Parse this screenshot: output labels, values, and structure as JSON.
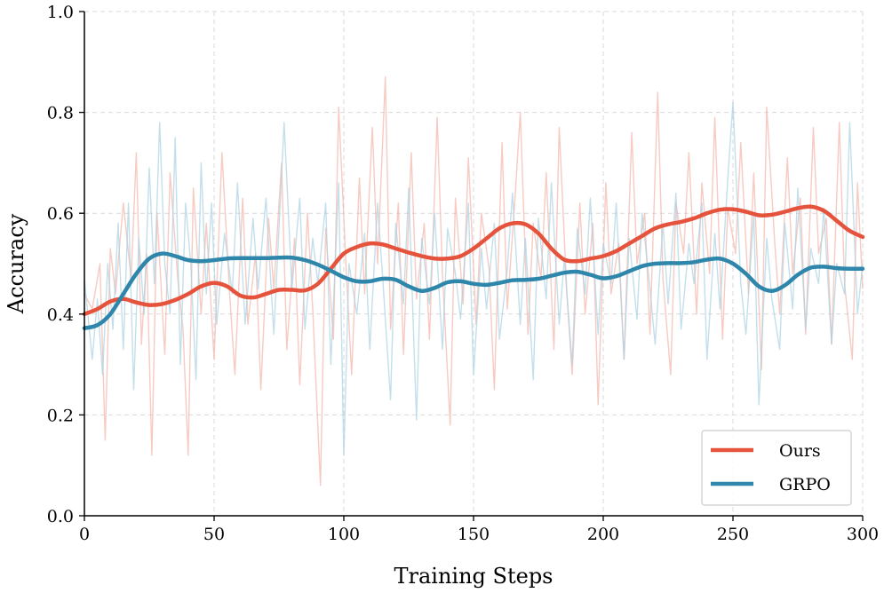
{
  "chart_data": {
    "type": "line",
    "title": "",
    "xlabel": "Training Steps",
    "ylabel": "Accuracy",
    "xlim": [
      0,
      300
    ],
    "ylim": [
      0.0,
      1.0
    ],
    "x_ticks": [
      0,
      50,
      100,
      150,
      200,
      250,
      300
    ],
    "x_tick_labels": [
      "0",
      "50",
      "100",
      "150",
      "200",
      "250",
      "300"
    ],
    "y_ticks": [
      0.0,
      0.2,
      0.4,
      0.6,
      0.8,
      1.0
    ],
    "y_tick_labels": [
      "0.0",
      "0.2",
      "0.4",
      "0.6",
      "0.8",
      "1.0"
    ],
    "grid": true,
    "legend_position": "bottom-right",
    "series": [
      {
        "name": "Ours",
        "color": "#e5533c",
        "raw_color": "#f4b3a8",
        "smoothed": {
          "x": [
            0,
            5,
            10,
            15,
            20,
            25,
            30,
            35,
            40,
            45,
            50,
            55,
            60,
            65,
            70,
            75,
            80,
            85,
            90,
            95,
            100,
            105,
            110,
            115,
            120,
            125,
            130,
            135,
            140,
            145,
            150,
            155,
            160,
            165,
            170,
            175,
            180,
            185,
            190,
            195,
            200,
            205,
            210,
            215,
            220,
            225,
            230,
            235,
            240,
            245,
            250,
            255,
            260,
            265,
            270,
            275,
            280,
            285,
            290,
            295,
            300
          ],
          "y": [
            0.4,
            0.41,
            0.425,
            0.43,
            0.423,
            0.418,
            0.42,
            0.428,
            0.44,
            0.455,
            0.462,
            0.455,
            0.437,
            0.433,
            0.44,
            0.448,
            0.448,
            0.447,
            0.46,
            0.49,
            0.52,
            0.533,
            0.54,
            0.538,
            0.53,
            0.522,
            0.515,
            0.51,
            0.51,
            0.515,
            0.53,
            0.55,
            0.57,
            0.58,
            0.578,
            0.56,
            0.53,
            0.508,
            0.505,
            0.51,
            0.515,
            0.525,
            0.54,
            0.555,
            0.57,
            0.578,
            0.583,
            0.59,
            0.6,
            0.607,
            0.608,
            0.603,
            0.596,
            0.597,
            0.603,
            0.61,
            0.613,
            0.605,
            0.585,
            0.565,
            0.553
          ]
        },
        "raw": {
          "x": [
            0,
            3,
            6,
            8,
            10,
            12,
            15,
            18,
            20,
            22,
            24,
            26,
            28,
            31,
            33,
            36,
            38,
            40,
            42,
            45,
            47,
            50,
            53,
            56,
            58,
            61,
            63,
            66,
            68,
            71,
            73,
            76,
            78,
            81,
            83,
            86,
            88,
            91,
            93,
            96,
            98,
            101,
            103,
            106,
            108,
            111,
            113,
            116,
            118,
            121,
            123,
            126,
            128,
            131,
            133,
            136,
            138,
            141,
            143,
            146,
            148,
            151,
            153,
            156,
            158,
            161,
            163,
            166,
            168,
            171,
            173,
            176,
            178,
            181,
            183,
            186,
            188,
            191,
            193,
            196,
            198,
            201,
            203,
            206,
            208,
            211,
            213,
            216,
            218,
            221,
            223,
            226,
            228,
            231,
            233,
            236,
            238,
            241,
            243,
            246,
            248,
            251,
            253,
            256,
            258,
            261,
            263,
            266,
            268,
            271,
            273,
            276,
            278,
            281,
            283,
            286,
            288,
            291,
            293,
            296,
            298,
            300
          ],
          "y": [
            0.44,
            0.41,
            0.5,
            0.15,
            0.53,
            0.44,
            0.62,
            0.47,
            0.72,
            0.34,
            0.52,
            0.12,
            0.6,
            0.32,
            0.68,
            0.47,
            0.37,
            0.12,
            0.65,
            0.4,
            0.58,
            0.31,
            0.72,
            0.44,
            0.28,
            0.63,
            0.38,
            0.52,
            0.25,
            0.59,
            0.45,
            0.7,
            0.33,
            0.55,
            0.26,
            0.6,
            0.41,
            0.06,
            0.57,
            0.35,
            0.81,
            0.48,
            0.28,
            0.67,
            0.44,
            0.77,
            0.5,
            0.87,
            0.37,
            0.62,
            0.32,
            0.72,
            0.43,
            0.58,
            0.35,
            0.79,
            0.48,
            0.18,
            0.63,
            0.42,
            0.71,
            0.38,
            0.6,
            0.49,
            0.25,
            0.74,
            0.41,
            0.63,
            0.8,
            0.36,
            0.58,
            0.47,
            0.68,
            0.33,
            0.77,
            0.44,
            0.28,
            0.62,
            0.4,
            0.58,
            0.22,
            0.66,
            0.44,
            0.54,
            0.31,
            0.76,
            0.5,
            0.6,
            0.36,
            0.84,
            0.47,
            0.28,
            0.62,
            0.52,
            0.72,
            0.4,
            0.66,
            0.48,
            0.79,
            0.35,
            0.61,
            0.52,
            0.74,
            0.44,
            0.68,
            0.29,
            0.81,
            0.55,
            0.4,
            0.71,
            0.48,
            0.63,
            0.36,
            0.77,
            0.52,
            0.59,
            0.34,
            0.78,
            0.46,
            0.31,
            0.66,
            0.45
          ]
        }
      },
      {
        "name": "GRPO",
        "color": "#2e86ab",
        "raw_color": "#a9d2e3",
        "smoothed": {
          "x": [
            0,
            5,
            10,
            15,
            20,
            25,
            30,
            35,
            40,
            45,
            50,
            55,
            60,
            65,
            70,
            75,
            80,
            85,
            90,
            95,
            100,
            105,
            110,
            115,
            120,
            125,
            130,
            135,
            140,
            145,
            150,
            155,
            160,
            165,
            170,
            175,
            180,
            185,
            190,
            195,
            200,
            205,
            210,
            215,
            220,
            225,
            230,
            235,
            240,
            245,
            250,
            255,
            260,
            265,
            270,
            275,
            280,
            285,
            290,
            295,
            300
          ],
          "y": [
            0.372,
            0.378,
            0.4,
            0.44,
            0.48,
            0.51,
            0.52,
            0.515,
            0.507,
            0.505,
            0.507,
            0.51,
            0.511,
            0.511,
            0.511,
            0.512,
            0.512,
            0.507,
            0.498,
            0.486,
            0.473,
            0.465,
            0.465,
            0.47,
            0.468,
            0.455,
            0.446,
            0.452,
            0.463,
            0.465,
            0.46,
            0.458,
            0.462,
            0.467,
            0.468,
            0.47,
            0.476,
            0.482,
            0.484,
            0.478,
            0.471,
            0.475,
            0.485,
            0.495,
            0.5,
            0.501,
            0.501,
            0.503,
            0.508,
            0.51,
            0.5,
            0.48,
            0.455,
            0.446,
            0.457,
            0.478,
            0.492,
            0.494,
            0.491,
            0.49,
            0.49
          ]
        },
        "raw": {
          "x": [
            0,
            3,
            5,
            7,
            9,
            11,
            13,
            15,
            17,
            19,
            21,
            23,
            25,
            27,
            29,
            31,
            33,
            35,
            37,
            39,
            41,
            43,
            45,
            47,
            49,
            51,
            54,
            57,
            59,
            62,
            65,
            67,
            70,
            73,
            75,
            77,
            80,
            83,
            85,
            88,
            90,
            93,
            95,
            98,
            100,
            102,
            105,
            108,
            110,
            113,
            115,
            118,
            120,
            123,
            125,
            128,
            130,
            133,
            135,
            138,
            140,
            143,
            145,
            148,
            150,
            153,
            155,
            158,
            160,
            163,
            165,
            168,
            170,
            173,
            175,
            178,
            180,
            183,
            185,
            188,
            190,
            193,
            195,
            198,
            200,
            203,
            205,
            208,
            210,
            213,
            215,
            218,
            220,
            223,
            225,
            228,
            230,
            233,
            235,
            238,
            240,
            243,
            245,
            248,
            250,
            253,
            255,
            258,
            260,
            263,
            265,
            268,
            270,
            273,
            275,
            278,
            280,
            283,
            285,
            288,
            290,
            293,
            295,
            298,
            300
          ],
          "y": [
            0.47,
            0.31,
            0.43,
            0.28,
            0.5,
            0.37,
            0.58,
            0.33,
            0.62,
            0.25,
            0.55,
            0.4,
            0.69,
            0.46,
            0.78,
            0.5,
            0.4,
            0.75,
            0.3,
            0.62,
            0.5,
            0.27,
            0.7,
            0.44,
            0.62,
            0.38,
            0.56,
            0.44,
            0.66,
            0.38,
            0.59,
            0.45,
            0.63,
            0.36,
            0.57,
            0.78,
            0.45,
            0.63,
            0.37,
            0.55,
            0.46,
            0.62,
            0.3,
            0.66,
            0.12,
            0.5,
            0.4,
            0.56,
            0.33,
            0.62,
            0.47,
            0.23,
            0.58,
            0.42,
            0.65,
            0.19,
            0.55,
            0.42,
            0.6,
            0.33,
            0.57,
            0.48,
            0.39,
            0.62,
            0.28,
            0.53,
            0.41,
            0.58,
            0.35,
            0.49,
            0.64,
            0.38,
            0.55,
            0.27,
            0.59,
            0.43,
            0.66,
            0.38,
            0.51,
            0.3,
            0.57,
            0.44,
            0.63,
            0.36,
            0.54,
            0.46,
            0.62,
            0.31,
            0.55,
            0.39,
            0.6,
            0.45,
            0.34,
            0.58,
            0.42,
            0.64,
            0.37,
            0.54,
            0.46,
            0.62,
            0.31,
            0.56,
            0.41,
            0.67,
            0.82,
            0.46,
            0.36,
            0.6,
            0.22,
            0.55,
            0.43,
            0.33,
            0.58,
            0.41,
            0.65,
            0.37,
            0.53,
            0.46,
            0.61,
            0.34,
            0.5,
            0.44,
            0.78,
            0.4,
            0.5
          ]
        }
      }
    ]
  }
}
